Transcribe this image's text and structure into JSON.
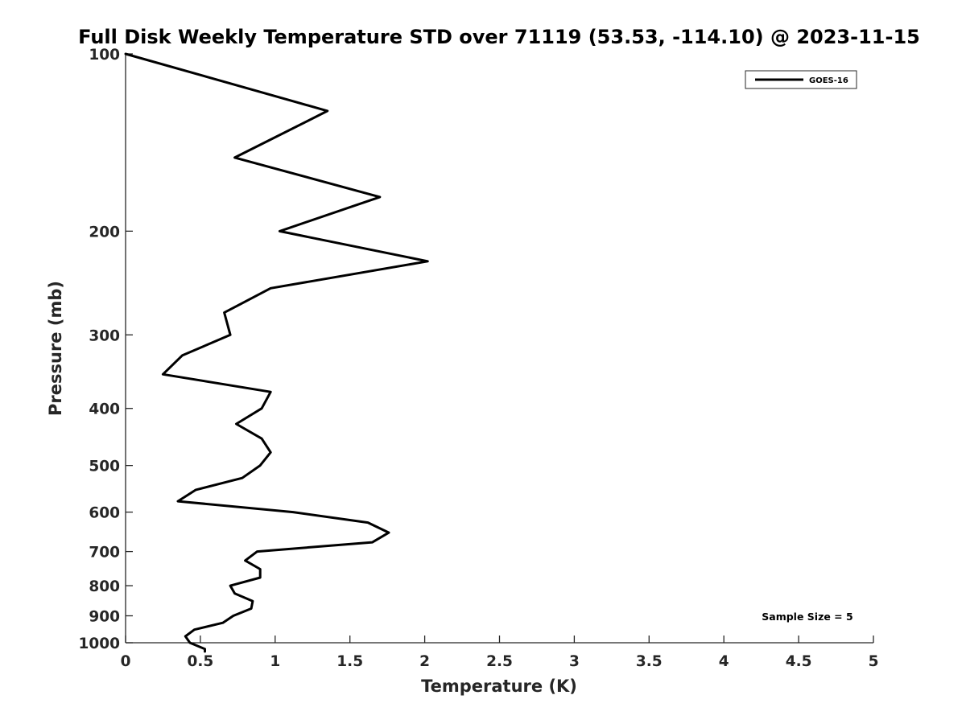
{
  "chart_data": {
    "type": "line",
    "title": "Full Disk Weekly Temperature STD over 71119 (53.53, -114.10) @ 2023-11-15",
    "xlabel": "Temperature (K)",
    "ylabel": "Pressure (mb)",
    "xlim": [
      0,
      5
    ],
    "ylim": [
      100,
      1000
    ],
    "yscale": "log",
    "y_reversed": true,
    "grid": false,
    "legend_position": "top-right",
    "x_ticks": [
      0,
      0.5,
      1,
      1.5,
      2,
      2.5,
      3,
      3.5,
      4,
      4.5,
      5
    ],
    "x_tick_labels": [
      "0",
      "0.5",
      "1",
      "1.5",
      "2",
      "2.5",
      "3",
      "3.5",
      "4",
      "4.5",
      "5"
    ],
    "y_ticks": [
      100,
      200,
      300,
      400,
      500,
      600,
      700,
      800,
      900,
      1000
    ],
    "y_tick_labels": [
      "100",
      "200",
      "300",
      "400",
      "500",
      "600",
      "700",
      "800",
      "900",
      "1000"
    ],
    "series": [
      {
        "name": "GOES-16",
        "color": "#000000",
        "points": [
          [
            0.0,
            100
          ],
          [
            1.35,
            125
          ],
          [
            0.73,
            150
          ],
          [
            1.7,
            175
          ],
          [
            1.03,
            200
          ],
          [
            2.02,
            225
          ],
          [
            0.97,
            250
          ],
          [
            0.66,
            275
          ],
          [
            0.7,
            300
          ],
          [
            0.38,
            325
          ],
          [
            0.25,
            350
          ],
          [
            0.97,
            375
          ],
          [
            0.91,
            400
          ],
          [
            0.74,
            425
          ],
          [
            0.91,
            450
          ],
          [
            0.97,
            475
          ],
          [
            0.9,
            500
          ],
          [
            0.78,
            525
          ],
          [
            0.47,
            550
          ],
          [
            0.35,
            575
          ],
          [
            1.12,
            600
          ],
          [
            1.62,
            625
          ],
          [
            1.76,
            650
          ],
          [
            1.65,
            675
          ],
          [
            0.88,
            700
          ],
          [
            0.8,
            725
          ],
          [
            0.9,
            750
          ],
          [
            0.9,
            775
          ],
          [
            0.7,
            800
          ],
          [
            0.73,
            825
          ],
          [
            0.85,
            850
          ],
          [
            0.84,
            875
          ],
          [
            0.72,
            900
          ],
          [
            0.65,
            925
          ],
          [
            0.46,
            950
          ],
          [
            0.4,
            975
          ],
          [
            0.43,
            1000
          ],
          [
            0.53,
            1025
          ],
          [
            0.53,
            1035
          ]
        ]
      }
    ],
    "annotation": "Sample Size = 5"
  }
}
